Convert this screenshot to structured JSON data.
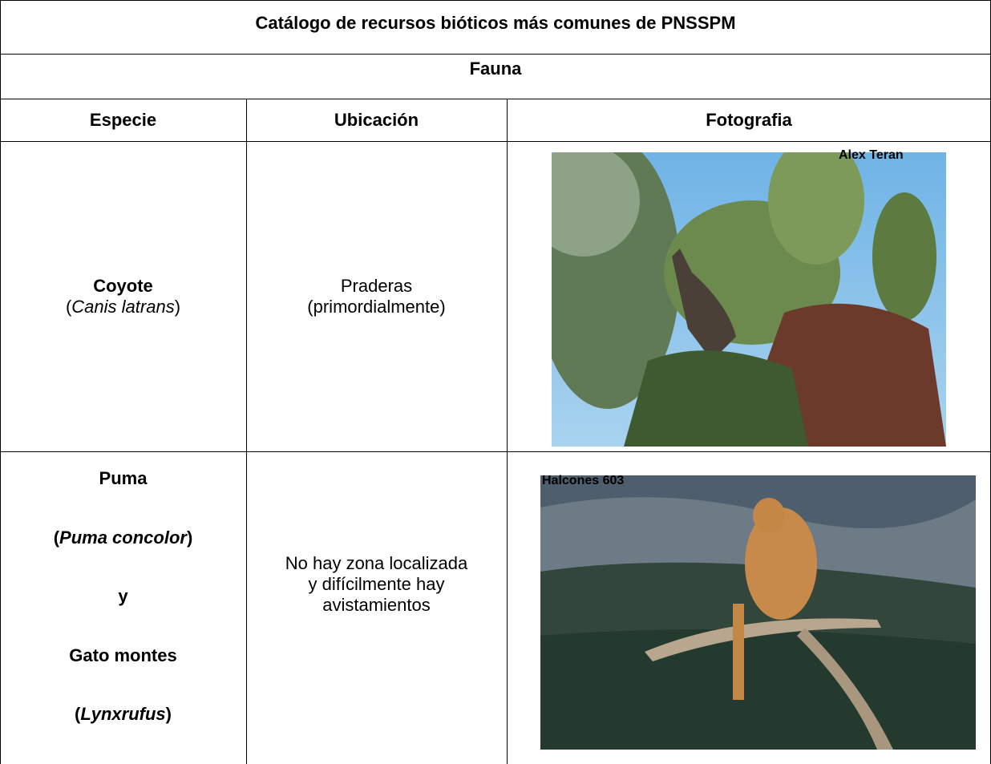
{
  "table": {
    "title": "Catálogo de recursos bióticos más comunes de PNSSPM",
    "section": "Fauna",
    "header": [
      "Especie",
      "Ubicación",
      "Fotografia"
    ],
    "rows": [
      {
        "species": [
          {
            "parts": [
              "Coyote"
            ]
          },
          {
            "parts": [
              "(",
              "Canis latrans",
              ")"
            ]
          }
        ],
        "location": [
          "Praderas",
          "(primordialmente)"
        ],
        "photo_credit": "Alex Teran"
      },
      {
        "species": [
          {
            "parts": [
              "Puma"
            ]
          },
          {
            "parts": [
              "(",
              "Puma concolor",
              ")"
            ]
          },
          {
            "parts": [
              "y"
            ]
          },
          {
            "parts": [
              "Gato montes"
            ]
          },
          {
            "parts": [
              "(",
              "Lynxrufus",
              ")"
            ]
          }
        ],
        "location": [
          "No hay zona localizada",
          "y difícilmente hay",
          "avistamientos"
        ],
        "photo_credit": "Halcones 603"
      }
    ]
  }
}
